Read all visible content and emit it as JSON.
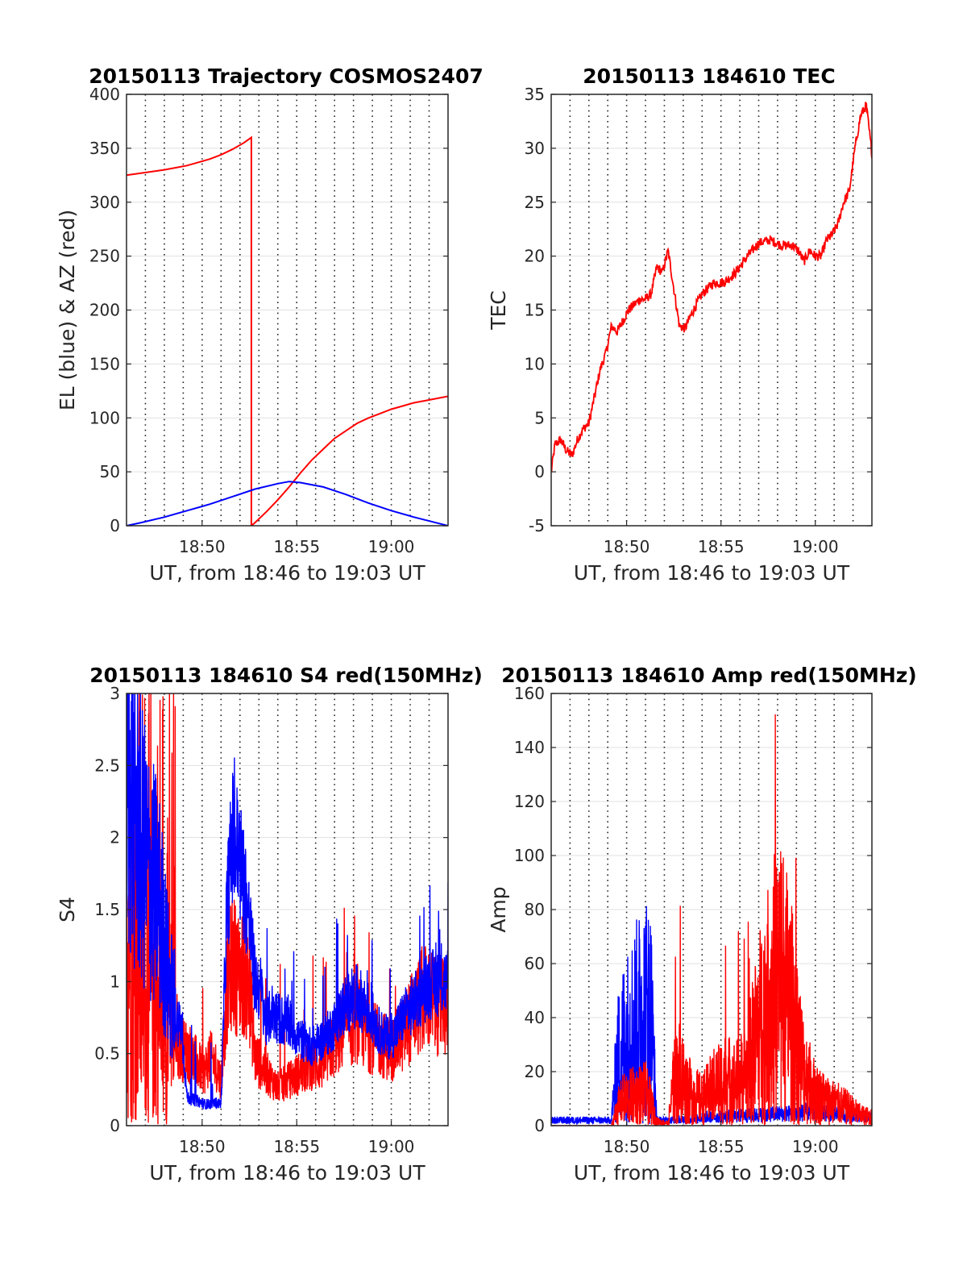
{
  "chart_data": [
    {
      "type": "line",
      "title": "20150113 Trajectory COSMOS2407",
      "xlabel": "UT, from 18:46 to 19:03 UT",
      "ylabel": "EL (blue) & AZ (red)",
      "xlim": [
        18.7667,
        19.05
      ],
      "ylim": [
        0,
        400
      ],
      "yticks": [
        0,
        50,
        100,
        150,
        200,
        250,
        300,
        350,
        400
      ],
      "xticks": [
        {
          "value": 18.8333,
          "label": "18:50"
        },
        {
          "value": 18.9167,
          "label": "18:55"
        },
        {
          "value": 19.0,
          "label": "19:00"
        }
      ],
      "grid": true,
      "series": [
        {
          "color": "#ff0000",
          "style": "az",
          "x": [
            18.7667,
            18.78,
            18.79,
            18.8,
            18.81,
            18.82,
            18.83,
            18.84,
            18.85,
            18.86,
            18.87,
            18.8767,
            18.8767,
            18.88,
            18.89,
            18.9,
            18.91,
            18.92,
            18.93,
            18.94,
            18.95,
            18.96,
            18.97,
            18.98,
            18.99,
            19.0,
            19.01,
            19.02,
            19.03,
            19.05
          ],
          "y": [
            325,
            327,
            328.5,
            330,
            332,
            334,
            337,
            340,
            344,
            349,
            355,
            360,
            0,
            3,
            13,
            24,
            36,
            49,
            61,
            71,
            81,
            88,
            95,
            100,
            104,
            108,
            111,
            114,
            116,
            120
          ]
        },
        {
          "color": "#0000ff",
          "style": "el",
          "x": [
            18.7667,
            18.78,
            18.8,
            18.82,
            18.84,
            18.86,
            18.88,
            18.9,
            18.91,
            18.92,
            18.94,
            18.96,
            18.98,
            19.0,
            19.02,
            19.05
          ],
          "y": [
            0,
            3,
            8,
            14,
            20,
            27,
            34,
            39,
            41,
            40,
            36,
            29,
            21,
            14,
            8,
            0
          ]
        }
      ]
    },
    {
      "type": "line",
      "title": "20150113 184610 TEC",
      "xlabel": "UT, from 18:46 to 19:03 UT",
      "ylabel": "TEC",
      "xlim": [
        18.7667,
        19.05
      ],
      "ylim": [
        -5,
        35
      ],
      "yticks": [
        -5,
        0,
        5,
        10,
        15,
        20,
        25,
        30,
        35
      ],
      "xticks": [
        {
          "value": 18.8333,
          "label": "18:50"
        },
        {
          "value": 18.9167,
          "label": "18:55"
        },
        {
          "value": 19.0,
          "label": "19:00"
        }
      ],
      "grid": true,
      "series": [
        {
          "color": "#ff0000",
          "style": "tec",
          "x": [
            18.7667,
            18.77,
            18.775,
            18.78,
            18.785,
            18.79,
            18.795,
            18.8,
            18.805,
            18.81,
            18.815,
            18.82,
            18.825,
            18.83,
            18.835,
            18.84,
            18.845,
            18.85,
            18.855,
            18.86,
            18.865,
            18.87,
            18.875,
            18.88,
            18.885,
            18.89,
            18.895,
            18.9,
            18.91,
            18.92,
            18.93,
            18.94,
            18.95,
            18.96,
            18.97,
            18.98,
            18.985,
            18.99,
            18.995,
            19.0,
            19.005,
            19.01,
            19.015,
            19.02,
            19.025,
            19.03,
            19.035,
            19.04,
            19.045,
            19.05
          ],
          "y": [
            0,
            2.5,
            3,
            2,
            1.5,
            3,
            4,
            4.5,
            7,
            9.5,
            11,
            13.5,
            13,
            14,
            15,
            15.5,
            16,
            16,
            16.5,
            19,
            18.5,
            20.5,
            17,
            13.5,
            13.3,
            14.5,
            15.5,
            16.5,
            17.5,
            17.6,
            18.5,
            20,
            21.2,
            21.5,
            21,
            21,
            20.5,
            19.5,
            20.5,
            20,
            20,
            21.5,
            22,
            23,
            25,
            26,
            30,
            33,
            34,
            29.5
          ]
        }
      ]
    },
    {
      "type": "line",
      "title": "20150113 184610 S4 red(150MHz)",
      "xlabel": "UT, from 18:46 to 19:03 UT",
      "ylabel": "S4",
      "xlim": [
        18.7667,
        19.05
      ],
      "ylim": [
        0,
        3
      ],
      "yticks": [
        0,
        0.5,
        1,
        1.5,
        2,
        2.5,
        3
      ],
      "xticks": [
        {
          "value": 18.8333,
          "label": "18:50"
        },
        {
          "value": 18.9167,
          "label": "18:55"
        },
        {
          "value": 19.0,
          "label": "19:00"
        }
      ],
      "grid": true,
      "series": [
        {
          "color": "#ff0000",
          "style": "s4red",
          "x": [
            18.7667,
            18.775,
            18.785,
            18.795,
            18.8,
            18.805,
            18.81,
            18.815,
            18.82,
            18.825,
            18.83,
            18.835,
            18.84,
            18.845,
            18.85,
            18.855,
            18.86,
            18.865,
            18.87,
            18.875,
            18.88,
            18.885,
            18.89,
            18.895,
            18.9,
            18.91,
            18.92,
            18.93,
            18.94,
            18.95,
            18.96,
            18.97,
            18.98,
            18.99,
            19.0,
            19.01,
            19.02,
            19.03,
            19.04,
            19.05
          ],
          "y": [
            1.5,
            1.2,
            1.0,
            0.8,
            0.9,
            0.7,
            0.55,
            0.5,
            0.5,
            0.45,
            0.4,
            0.35,
            0.45,
            0.4,
            0.3,
            0.9,
            1.1,
            1.0,
            1.0,
            0.9,
            0.45,
            0.4,
            0.35,
            0.3,
            0.25,
            0.3,
            0.35,
            0.4,
            0.4,
            0.55,
            0.65,
            0.7,
            0.6,
            0.55,
            0.5,
            0.6,
            0.75,
            0.85,
            0.8,
            0.75
          ]
        },
        {
          "color": "#0000ff",
          "style": "s4blue",
          "x": [
            18.7667,
            18.775,
            18.785,
            18.795,
            18.8,
            18.805,
            18.81,
            18.815,
            18.82,
            18.825,
            18.83,
            18.835,
            18.84,
            18.845,
            18.85,
            18.855,
            18.86,
            18.865,
            18.87,
            18.875,
            18.88,
            18.885,
            18.89,
            18.895,
            18.9,
            18.91,
            18.92,
            18.93,
            18.94,
            18.95,
            18.96,
            18.97,
            18.98,
            18.99,
            19.0,
            19.01,
            19.02,
            19.03,
            19.04,
            19.05
          ],
          "y": [
            2.3,
            2.0,
            1.7,
            1.5,
            1.2,
            0.9,
            0.75,
            0.7,
            0.2,
            0.18,
            0.17,
            0.15,
            0.15,
            0.16,
            0.15,
            1.5,
            2.0,
            1.9,
            1.7,
            1.4,
            1.0,
            0.95,
            0.7,
            0.8,
            0.75,
            0.7,
            0.6,
            0.55,
            0.6,
            0.7,
            0.85,
            0.9,
            0.8,
            0.65,
            0.6,
            0.75,
            0.85,
            0.95,
            1.0,
            1.0
          ]
        }
      ]
    },
    {
      "type": "line",
      "title": "20150113 184610 Amp red(150MHz)",
      "xlabel": "UT, from 18:46 to 19:03 UT",
      "ylabel": "Amp",
      "xlim": [
        18.7667,
        19.05
      ],
      "ylim": [
        0,
        160
      ],
      "yticks": [
        0,
        20,
        40,
        60,
        80,
        100,
        120,
        140,
        160
      ],
      "xticks": [
        {
          "value": 18.8333,
          "label": "18:50"
        },
        {
          "value": 18.9167,
          "label": "18:55"
        },
        {
          "value": 19.0,
          "label": "19:00"
        }
      ],
      "grid": true,
      "series": [
        {
          "color": "#0000ff",
          "style": "ampblue",
          "x": [
            18.7667,
            18.78,
            18.8,
            18.82,
            18.825,
            18.83,
            18.835,
            18.84,
            18.845,
            18.85,
            18.855,
            18.86,
            18.87,
            18.9,
            18.95,
            19.0,
            19.05
          ],
          "y": [
            2,
            2,
            2,
            2,
            35,
            45,
            50,
            55,
            60,
            65,
            60,
            2,
            2,
            3,
            4,
            5,
            3
          ]
        },
        {
          "color": "#ff0000",
          "style": "ampred",
          "x": [
            18.7667,
            18.82,
            18.825,
            18.83,
            18.84,
            18.85,
            18.855,
            18.86,
            18.87,
            18.875,
            18.88,
            18.89,
            18.9,
            18.91,
            18.92,
            18.93,
            18.94,
            18.95,
            18.96,
            18.97,
            18.98,
            18.99,
            19.0,
            19.01,
            19.02,
            19.03,
            19.04,
            19.05
          ],
          "y": [
            0,
            0,
            8,
            12,
            14,
            15,
            10,
            2,
            1,
            20,
            25,
            15,
            12,
            18,
            22,
            20,
            25,
            45,
            60,
            70,
            50,
            25,
            15,
            12,
            10,
            8,
            5,
            4
          ]
        }
      ]
    }
  ]
}
